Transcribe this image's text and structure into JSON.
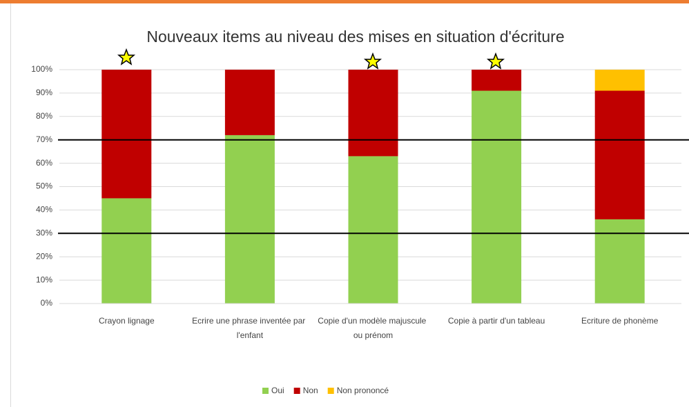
{
  "chart_data": {
    "type": "stacked_bar",
    "title": "Nouveaux items au niveau des mises en situation d'écriture",
    "categories": [
      "Crayon lignage",
      "Ecrire une phrase inventée par l'enfant",
      "Copie d'un modèle majuscule ou prénom",
      "Copie à partir d'un tableau",
      "Ecriture de phonème"
    ],
    "series": [
      {
        "name": "Oui",
        "color": "#92d050",
        "values": [
          45,
          72,
          63,
          91,
          36
        ]
      },
      {
        "name": "Non",
        "color": "#c00000",
        "values": [
          55,
          28,
          37,
          9,
          55
        ]
      },
      {
        "name": "Non prononcé",
        "color": "#ffc000",
        "values": [
          0,
          0,
          0,
          0,
          9
        ]
      }
    ],
    "ylim": [
      0,
      100
    ],
    "yticks": [
      {
        "value": 0,
        "label": "0%"
      },
      {
        "value": 10,
        "label": "10%"
      },
      {
        "value": 20,
        "label": "20%"
      },
      {
        "value": 30,
        "label": "30%"
      },
      {
        "value": 40,
        "label": "40%"
      },
      {
        "value": 50,
        "label": "50%"
      },
      {
        "value": 60,
        "label": "60%"
      },
      {
        "value": 70,
        "label": "70%"
      },
      {
        "value": 80,
        "label": "80%"
      },
      {
        "value": 90,
        "label": "90%"
      },
      {
        "value": 100,
        "label": "100%"
      }
    ],
    "grid": true,
    "reference_lines": [
      70,
      30
    ],
    "legend": "bottom"
  }
}
